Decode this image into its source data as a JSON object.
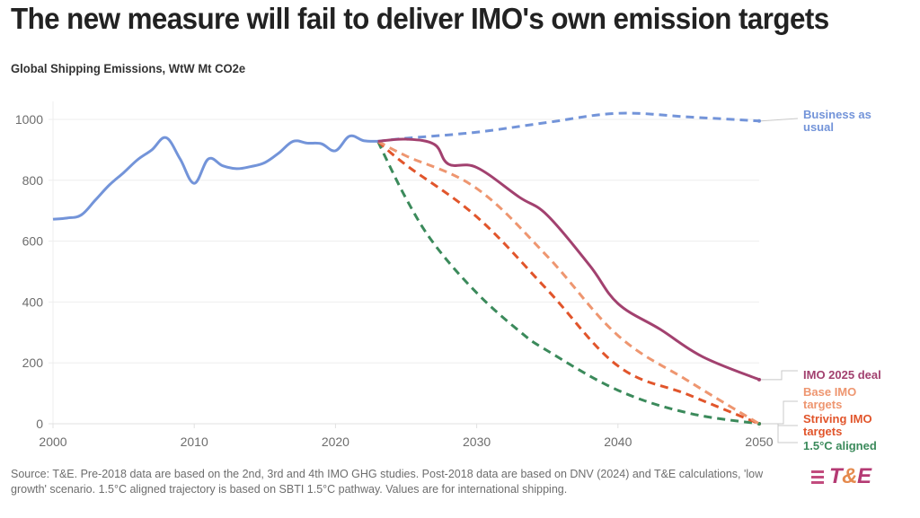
{
  "header": {
    "title": "The new measure will fail to deliver IMO's own emission targets",
    "subtitle": "Global Shipping Emissions, WtW Mt CO2e"
  },
  "footer": {
    "source": "Source: T&E. Pre-2018 data are based on the 2nd, 3rd and 4th IMO GHG studies. Post-2018 data are based on DNV (2024) and T&E calculations, 'low growth' scenario. 1.5°C aligned trajectory is based on SBTI 1.5°C pathway. Values are for international shipping.",
    "logo": {
      "t": "T",
      "amp": "&",
      "e": "E"
    }
  },
  "chart_data": {
    "type": "line",
    "title": "The new measure will fail to deliver IMO's own emission targets",
    "subtitle": "Global Shipping Emissions, WtW Mt CO2e",
    "xlabel": "",
    "ylabel": "",
    "xlim": [
      2000,
      2050
    ],
    "ylim": [
      0,
      1000
    ],
    "xticks": [
      2000,
      2010,
      2020,
      2030,
      2040,
      2050
    ],
    "yticks": [
      0,
      200,
      400,
      600,
      800,
      1000
    ],
    "grid": true,
    "legend": "direct labels at right end",
    "series": [
      {
        "name": "Historical",
        "color": "#7394d9",
        "style": "solid",
        "x": [
          2000,
          2001,
          2002,
          2003,
          2004,
          2005,
          2006,
          2007,
          2008,
          2009,
          2010,
          2011,
          2012,
          2013,
          2014,
          2015,
          2016,
          2017,
          2018,
          2019,
          2020,
          2021,
          2022,
          2023
        ],
        "y": [
          672,
          676,
          686,
          735,
          785,
          825,
          868,
          900,
          940,
          870,
          790,
          870,
          848,
          838,
          845,
          858,
          890,
          928,
          922,
          920,
          897,
          945,
          930,
          928
        ]
      },
      {
        "name": "Business as usual",
        "label": "Business as usual",
        "color": "#7394d9",
        "style": "dashed",
        "x": [
          2023,
          2025,
          2030,
          2035,
          2040,
          2045,
          2050
        ],
        "y": [
          928,
          938,
          958,
          990,
          1020,
          1008,
          995
        ]
      },
      {
        "name": "IMO 2025 deal",
        "label": "IMO 2025 deal",
        "color": "#a2416f",
        "style": "solid",
        "x": [
          2023,
          2025,
          2027,
          2028,
          2030,
          2033,
          2035,
          2038,
          2040,
          2043,
          2046,
          2050
        ],
        "y": [
          928,
          935,
          918,
          853,
          842,
          745,
          685,
          520,
          395,
          310,
          220,
          145
        ]
      },
      {
        "name": "Base IMO targets",
        "label": "Base IMO targets",
        "color": "#ee9670",
        "style": "dashed",
        "x": [
          2023,
          2025,
          2030,
          2035,
          2040,
          2045,
          2050
        ],
        "y": [
          928,
          880,
          773,
          550,
          290,
          140,
          0
        ]
      },
      {
        "name": "Striving IMO targets",
        "label": "Striving IMO targets",
        "color": "#e1552b",
        "style": "dashed",
        "x": [
          2023,
          2025,
          2030,
          2035,
          2040,
          2045,
          2050
        ],
        "y": [
          928,
          850,
          680,
          440,
          190,
          95,
          0
        ]
      },
      {
        "name": "1.5°C aligned",
        "label": "1.5°C aligned",
        "color": "#3b8a5b",
        "style": "dashed",
        "x": [
          2023,
          2025,
          2027,
          2030,
          2033,
          2035,
          2040,
          2045,
          2050
        ],
        "y": [
          928,
          740,
          590,
          430,
          305,
          240,
          110,
          35,
          0
        ]
      }
    ],
    "annotations": [
      "Business as usual",
      "IMO 2025 deal",
      "Base IMO targets",
      "Striving IMO targets",
      "1.5°C aligned"
    ]
  }
}
